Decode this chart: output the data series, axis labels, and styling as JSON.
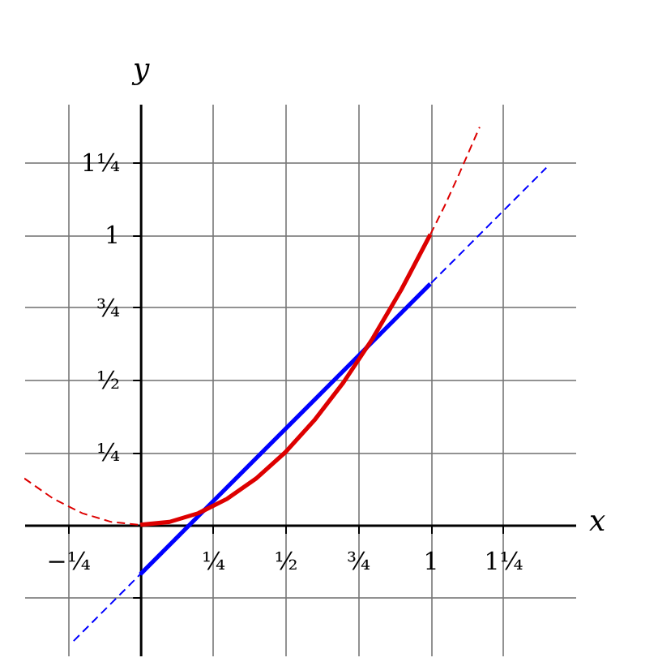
{
  "chart_data": {
    "type": "line",
    "xlabel": "x",
    "ylabel": "y",
    "xlim": [
      -0.4,
      1.5
    ],
    "ylim": [
      -0.45,
      1.45
    ],
    "xticks": [
      {
        "value": -0.25,
        "label": "−¼"
      },
      {
        "value": 0.25,
        "label": "¼"
      },
      {
        "value": 0.5,
        "label": "½"
      },
      {
        "value": 0.75,
        "label": "¾"
      },
      1,
      {
        "value": 1.25,
        "label": "1¼"
      }
    ],
    "yticks": [
      {
        "value": -0.25,
        "label": null
      },
      {
        "value": 0.25,
        "label": "¼"
      },
      {
        "value": 0.5,
        "label": "½"
      },
      {
        "value": 0.75,
        "label": "¾"
      },
      1,
      {
        "value": 1.25,
        "label": "1¼"
      }
    ],
    "grid": true,
    "legend": false,
    "marker": "none",
    "series": [
      {
        "color": "#dd0000",
        "line_style": "dashed",
        "x": [
          -0.4,
          -0.3,
          -0.2,
          -0.1,
          0
        ],
        "values": [
          0.16,
          0.09,
          0.04,
          0.01,
          0
        ]
      },
      {
        "color": "#dd0000",
        "line_style": "dashed",
        "x": [
          1,
          1.05,
          1.1,
          1.17
        ],
        "values": [
          1,
          1.1,
          1.21,
          1.37
        ]
      },
      {
        "color": "#0000ff",
        "line_style": "dashed",
        "x": [
          -0.23,
          0,
          1,
          1.4
        ],
        "values": [
          -0.4,
          -0.17,
          0.83,
          1.23
        ]
      },
      {
        "color": "#0000ff",
        "line_style": "solid",
        "x": [
          0,
          1
        ],
        "values": [
          -0.17,
          0.83
        ]
      },
      {
        "color": "#dd0000",
        "line_style": "solid",
        "x": [
          0,
          0.1,
          0.2,
          0.3,
          0.4,
          0.5,
          0.6,
          0.7,
          0.8,
          0.9,
          1
        ],
        "values": [
          0,
          0.01,
          0.04,
          0.09,
          0.16,
          0.25,
          0.36,
          0.49,
          0.64,
          0.81,
          1
        ]
      }
    ]
  }
}
